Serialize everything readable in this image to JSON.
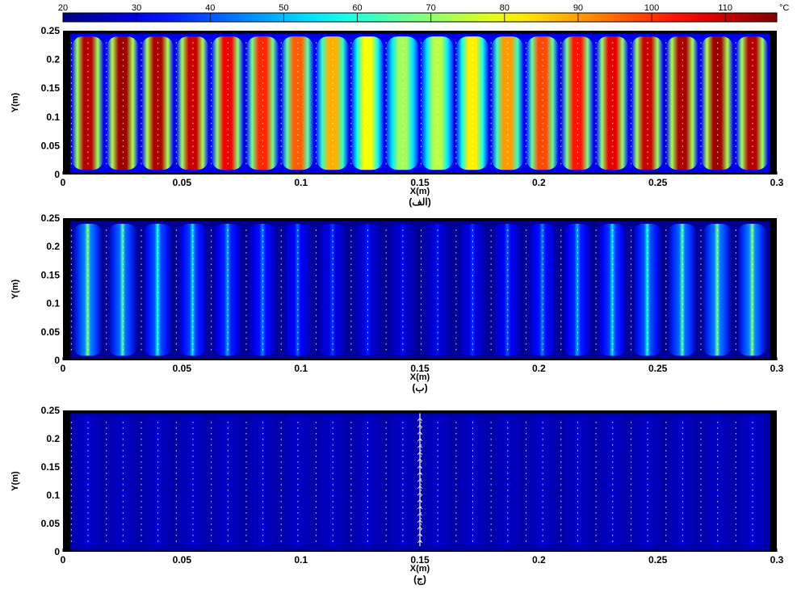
{
  "colorbar": {
    "ticks": [
      "20",
      "30",
      "40",
      "50",
      "60",
      "70",
      "80",
      "90",
      "100",
      "110"
    ],
    "tick_values": [
      20,
      30,
      40,
      50,
      60,
      70,
      80,
      90,
      100,
      110
    ],
    "range": [
      20,
      117
    ],
    "unit": "°C",
    "colormap": "jet"
  },
  "chart_data": [
    {
      "type": "heatmap",
      "caption": "(الف)",
      "xlabel": "X(m)",
      "ylabel": "Y(m)",
      "xlim": [
        0,
        0.3
      ],
      "ylim": [
        0,
        0.25
      ],
      "x_ticks": [
        "0",
        "0.05",
        "0.1",
        "0.15",
        "0.2",
        "0.25",
        "0.3"
      ],
      "y_ticks": [
        "0",
        "0.05",
        "0.1",
        "0.15",
        "0.2",
        "0.25"
      ],
      "channel_count": 20,
      "channel_peak_temperature_C": [
        112,
        114,
        113,
        110,
        106,
        101,
        96,
        88,
        80,
        72,
        74,
        82,
        90,
        98,
        103,
        107,
        110,
        113,
        114,
        112
      ],
      "channel_gap_temperature_C": [
        30,
        31,
        32,
        33,
        33,
        34,
        34,
        35,
        35,
        36,
        35,
        35,
        34,
        34,
        33,
        33,
        32,
        31,
        31,
        30
      ],
      "velocity_vectors_shown": true
    },
    {
      "type": "heatmap",
      "caption": "(ب)",
      "xlabel": "X(m)",
      "ylabel": "Y(m)",
      "xlim": [
        0,
        0.3
      ],
      "ylim": [
        0,
        0.25
      ],
      "x_ticks": [
        "0",
        "0.05",
        "0.1",
        "0.15",
        "0.2",
        "0.25",
        "0.3"
      ],
      "y_ticks": [
        "0",
        "0.05",
        "0.1",
        "0.15",
        "0.2",
        "0.25"
      ],
      "channel_count": 20,
      "channel_peak_temperature_C": [
        68,
        63,
        58,
        54,
        49,
        45,
        42,
        38,
        35,
        33,
        34,
        37,
        41,
        45,
        49,
        54,
        58,
        63,
        66,
        68
      ],
      "channel_gap_temperature_C": [
        22,
        22,
        22,
        22,
        22,
        22,
        22,
        22,
        22,
        22,
        22,
        22,
        22,
        22,
        22,
        22,
        22,
        22,
        22,
        22
      ],
      "velocity_vectors_shown": true
    },
    {
      "type": "heatmap",
      "caption": "(ج)",
      "xlabel": "X(m)",
      "ylabel": "Y(m)",
      "xlim": [
        0,
        0.3
      ],
      "ylim": [
        0,
        0.25
      ],
      "x_ticks": [
        "0",
        "0.05",
        "0.1",
        "0.15",
        "0.2",
        "0.25",
        "0.3"
      ],
      "y_ticks": [
        "0",
        "0.05",
        "0.1",
        "0.15",
        "0.2",
        "0.25"
      ],
      "channel_count": 20,
      "channel_peak_temperature_C": [
        29,
        28,
        28,
        28,
        28,
        28,
        28,
        28,
        28,
        28,
        28,
        28,
        28,
        28,
        28,
        28,
        28,
        28,
        28,
        29
      ],
      "channel_gap_temperature_C": [
        24,
        24,
        24,
        24,
        24,
        24,
        24,
        24,
        24,
        24,
        24,
        24,
        24,
        24,
        24,
        24,
        24,
        24,
        24,
        24
      ],
      "velocity_vectors_shown": true
    }
  ]
}
